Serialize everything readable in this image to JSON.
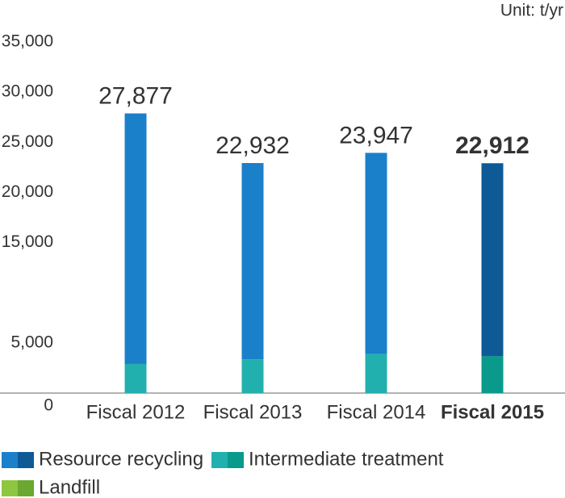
{
  "chart_data": {
    "type": "stacked_bar",
    "unit_label": "Unit: t/yr",
    "categories": [
      "Fiscal 2012",
      "Fiscal 2013",
      "Fiscal 2014",
      "Fiscal 2015"
    ],
    "emphasis": [
      false,
      false,
      false,
      true
    ],
    "series": [
      {
        "name": "Landfill",
        "color": "#8dc63f",
        "highlight_color": "#6aa832",
        "values": [
          0,
          0,
          0,
          0
        ]
      },
      {
        "name": "Intermediate treatment",
        "color": "#22b0ae",
        "highlight_color": "#0a9a8c",
        "values": [
          2900,
          3360,
          3890,
          3670
        ]
      },
      {
        "name": "Resource recycling",
        "color": "#1b80ca",
        "highlight_color": "#0e5a96",
        "values": [
          24977,
          19572,
          20057,
          19242
        ]
      }
    ],
    "totals": [
      27877,
      22932,
      23947,
      22912
    ],
    "total_labels": [
      "27,877",
      "22,932",
      "23,947",
      "22,912"
    ],
    "ylim": [
      0,
      35000
    ],
    "yticks": [
      0,
      {
        "value": 5000,
        "label": "5,000"
      },
      {
        "value": 15000,
        "label": "15,000"
      },
      {
        "value": 20000,
        "label": "20,000"
      },
      {
        "value": 25000,
        "label": "25,000"
      },
      {
        "value": 30000,
        "label": "30,000"
      },
      {
        "value": 35000,
        "label": "35,000"
      }
    ]
  }
}
